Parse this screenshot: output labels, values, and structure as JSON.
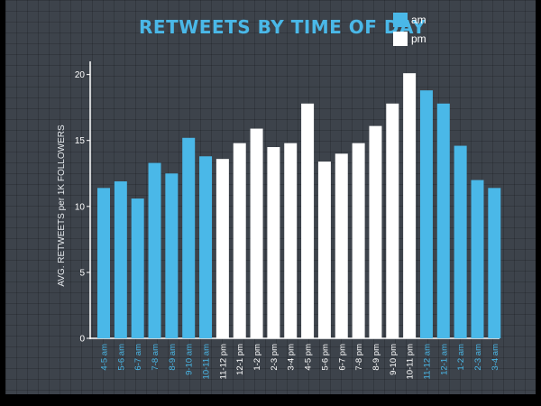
{
  "chart_data": {
    "type": "bar",
    "title": "RETWEETS BY TIME OF DAY",
    "ylabel": "AVG. RETWEETS per 1K FOLLOWERS",
    "xlabel": "",
    "ylim": [
      0,
      21
    ],
    "yticks": [
      0,
      5,
      10,
      15,
      20
    ],
    "grid": false,
    "legend_position": "top-right",
    "legend": [
      {
        "label": "am",
        "color": "#4ab8e8"
      },
      {
        "label": "pm",
        "color": "#ffffff"
      }
    ],
    "colors": {
      "title": "#4ab8e8",
      "am": "#4ab8e8",
      "pm": "#ffffff",
      "axis": "#ffffff",
      "tick_text": "#ffffff"
    },
    "categories": [
      "4-5 am",
      "5-6 am",
      "6-7 am",
      "7-8 am",
      "8-9 am",
      "9-10 am",
      "10-11 am",
      "11-12 pm",
      "12-1 pm",
      "1-2 pm",
      "2-3 pm",
      "3-4 pm",
      "4-5 pm",
      "5-6 pm",
      "6-7 pm",
      "7-8 pm",
      "8-9 pm",
      "9-10 pm",
      "10-11 pm",
      "11-12 am",
      "12-1 am",
      "1-2 am",
      "2-3 am",
      "3-4 am"
    ],
    "values": [
      11.4,
      11.9,
      10.6,
      13.3,
      12.5,
      15.2,
      13.8,
      13.6,
      14.8,
      15.9,
      14.5,
      14.8,
      17.8,
      13.4,
      14.0,
      14.8,
      16.1,
      17.8,
      20.1,
      18.8,
      17.8,
      14.6,
      12.0,
      11.4
    ],
    "period": [
      "am",
      "am",
      "am",
      "am",
      "am",
      "am",
      "am",
      "pm",
      "pm",
      "pm",
      "pm",
      "pm",
      "pm",
      "pm",
      "pm",
      "pm",
      "pm",
      "pm",
      "pm",
      "am",
      "am",
      "am",
      "am",
      "am"
    ]
  }
}
